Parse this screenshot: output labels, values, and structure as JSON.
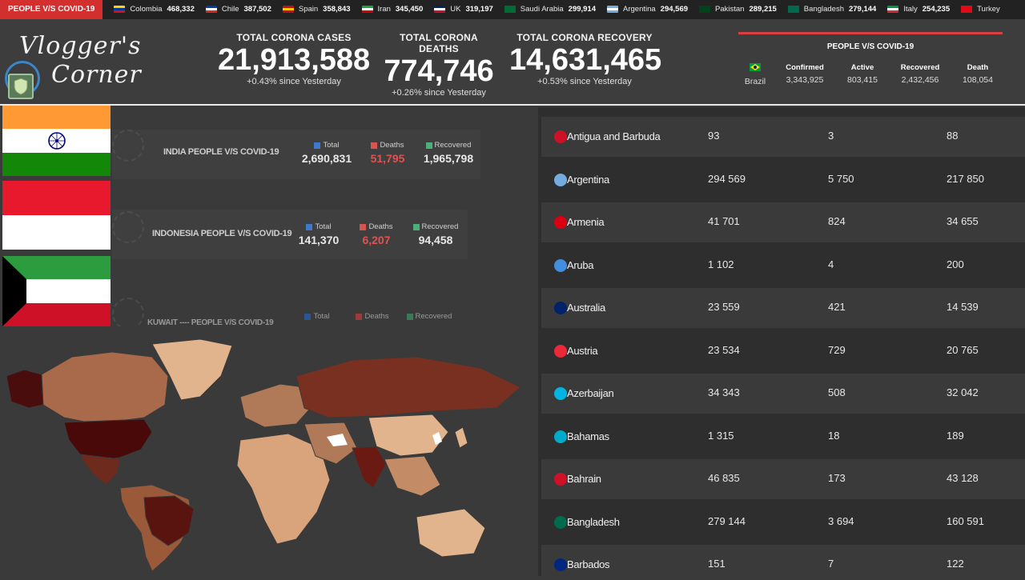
{
  "ticker": {
    "label": "PEOPLE V/S COVID-19",
    "items": [
      {
        "country": "Colombia",
        "value": "468,332",
        "colors": [
          "#fcd116",
          "#003893",
          "#ce1126"
        ]
      },
      {
        "country": "Chile",
        "value": "387,502",
        "colors": [
          "#0039a6",
          "#ffffff",
          "#d52b1e"
        ]
      },
      {
        "country": "Spain",
        "value": "358,843",
        "colors": [
          "#c60b1e",
          "#ffc400",
          "#c60b1e"
        ]
      },
      {
        "country": "Iran",
        "value": "345,450",
        "colors": [
          "#239f40",
          "#ffffff",
          "#da0000"
        ]
      },
      {
        "country": "UK",
        "value": "319,197",
        "colors": [
          "#012169",
          "#ffffff",
          "#c8102e"
        ]
      },
      {
        "country": "Saudi Arabia",
        "value": "299,914",
        "colors": [
          "#006c35",
          "#006c35",
          "#006c35"
        ]
      },
      {
        "country": "Argentina",
        "value": "294,569",
        "colors": [
          "#74acdf",
          "#ffffff",
          "#74acdf"
        ]
      },
      {
        "country": "Pakistan",
        "value": "289,215",
        "colors": [
          "#01411c",
          "#01411c",
          "#01411c"
        ]
      },
      {
        "country": "Bangladesh",
        "value": "279,144",
        "colors": [
          "#006a4e",
          "#006a4e",
          "#006a4e"
        ]
      },
      {
        "country": "Italy",
        "value": "254,235",
        "colors": [
          "#009246",
          "#ffffff",
          "#ce2b37"
        ]
      },
      {
        "country": "Turkey",
        "value": "",
        "colors": [
          "#e30a17",
          "#e30a17",
          "#e30a17"
        ]
      }
    ]
  },
  "header": {
    "logo_text_line1": "Vlogger's",
    "logo_text_line2": "Corner",
    "stats": [
      {
        "title": "TOTAL CORONA CASES",
        "value": "21,913,588",
        "sub": "+0.43% since Yesterday"
      },
      {
        "title": "TOTAL CORONA DEATHS",
        "value": "774,746",
        "sub": "+0.26% since Yesterday"
      },
      {
        "title": "TOTAL CORONA RECOVERY",
        "value": "14,631,465",
        "sub": "+0.53% since Yesterday"
      }
    ],
    "brazil": {
      "title": "PEOPLE V/S COVID-19",
      "country": "Brazil",
      "confirmed_label": "Confirmed",
      "confirmed": "3,343,925",
      "active_label": "Active",
      "active": "803,415",
      "recovered_label": "Recovered",
      "recovered": "2,432,456",
      "death_label": "Death",
      "death": "108,054"
    }
  },
  "cards": [
    {
      "title": "INDIA PEOPLE V/S COVID-19",
      "total_label": "Total",
      "total": "2,690,831",
      "deaths_label": "Deaths",
      "deaths": "51,795",
      "recovered_label": "Recovered",
      "recovered": "1,965,798"
    },
    {
      "title": "INDONESIA PEOPLE V/S COVID-19",
      "total_label": "Total",
      "total": "141,370",
      "deaths_label": "Deaths",
      "deaths": "6,207",
      "recovered_label": "Recovered",
      "recovered": "94,458"
    },
    {
      "title": "KUWAIT ---- PEOPLE V/S COVID-19",
      "total_label": "Total",
      "total": "",
      "deaths_label": "Deaths",
      "deaths": "",
      "recovered_label": "Recovered",
      "recovered": ""
    }
  ],
  "colors": {
    "total_dot": "#3f79c9",
    "deaths_dot": "#d9534f",
    "recovered_dot": "#4caf7a",
    "accent_red": "#d32f2f"
  },
  "table": {
    "rows": [
      {
        "country": "Antigua and Barbuda",
        "confirmed": "93",
        "deaths": "3",
        "recovered": "88",
        "flag": "#ce1126"
      },
      {
        "country": "Argentina",
        "confirmed": "294 569",
        "deaths": "5 750",
        "recovered": "217 850",
        "flag": "#74acdf"
      },
      {
        "country": "Armenia",
        "confirmed": "41 701",
        "deaths": "824",
        "recovered": "34 655",
        "flag": "#d90012"
      },
      {
        "country": "Aruba",
        "confirmed": "1 102",
        "deaths": "4",
        "recovered": "200",
        "flag": "#418fde"
      },
      {
        "country": "Australia",
        "confirmed": "23 559",
        "deaths": "421",
        "recovered": "14 539",
        "flag": "#012169"
      },
      {
        "country": "Austria",
        "confirmed": "23 534",
        "deaths": "729",
        "recovered": "20 765",
        "flag": "#ed2939"
      },
      {
        "country": "Azerbaijan",
        "confirmed": "34 343",
        "deaths": "508",
        "recovered": "32 042",
        "flag": "#00b5e2"
      },
      {
        "country": "Bahamas",
        "confirmed": "1 315",
        "deaths": "18",
        "recovered": "189",
        "flag": "#00abc9"
      },
      {
        "country": "Bahrain",
        "confirmed": "46 835",
        "deaths": "173",
        "recovered": "43 128",
        "flag": "#ce1126"
      },
      {
        "country": "Bangladesh",
        "confirmed": "279 144",
        "deaths": "3 694",
        "recovered": "160 591",
        "flag": "#006a4e"
      },
      {
        "country": "Barbados",
        "confirmed": "151",
        "deaths": "7",
        "recovered": "122",
        "flag": "#00267f"
      }
    ]
  }
}
